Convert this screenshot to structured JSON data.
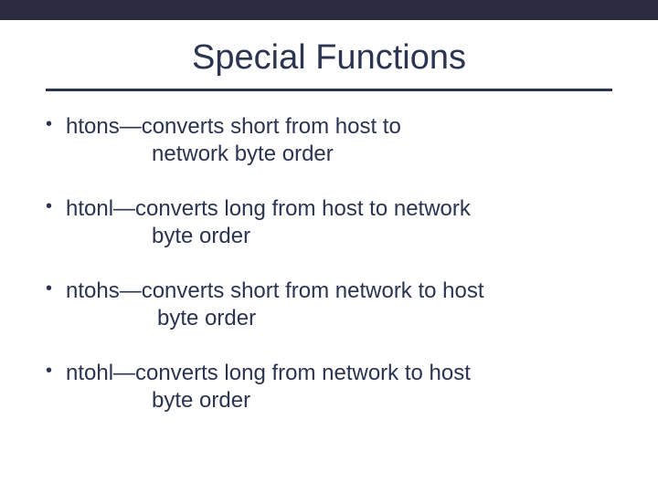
{
  "slide": {
    "title": "Special Functions",
    "title_color": "#2b3450",
    "title_fontsize": 38,
    "rule_color": "#2b3450",
    "topbar_color": "#2b2b3f",
    "background_color": "#ffffff",
    "body_fontsize": 24,
    "body_color": "#2b3450",
    "bullets": [
      {
        "line1": "htons—converts short from host to",
        "line2": "network byte order"
      },
      {
        "line1": "htonl—converts long from  host to network",
        "line2": "byte order"
      },
      {
        "line1": "ntohs—converts short from network to host",
        "line2": "byte order"
      },
      {
        "line1": "ntohl—converts long from network to host",
        "line2": "byte order"
      }
    ]
  }
}
